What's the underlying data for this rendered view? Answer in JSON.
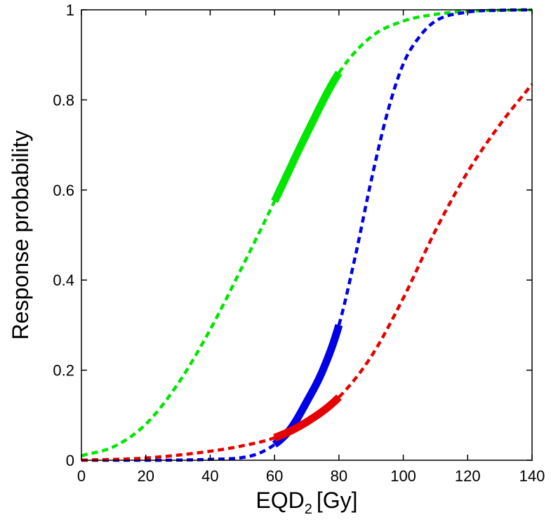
{
  "chart_data": {
    "type": "line",
    "title": "",
    "xlabel": {
      "main": "EQD",
      "subscript": "2",
      "unit": "[Gy]"
    },
    "ylabel": "Response probability",
    "xlim": [
      0,
      140
    ],
    "ylim": [
      0,
      1
    ],
    "xticks": [
      "0",
      "20",
      "40",
      "60",
      "80",
      "100",
      "120",
      "140"
    ],
    "yticks": [
      "0",
      "0.2",
      "0.4",
      "0.6",
      "0.8",
      "1"
    ],
    "grid": false,
    "highlight_range": [
      60,
      80
    ],
    "series": [
      {
        "name": "green",
        "color": "#00e600",
        "x": [
          0,
          10,
          20,
          30,
          40,
          50,
          60,
          70,
          80,
          90,
          100,
          110,
          120,
          130,
          140
        ],
        "y": [
          0.01,
          0.03,
          0.08,
          0.17,
          0.29,
          0.43,
          0.575,
          0.725,
          0.86,
          0.94,
          0.975,
          0.99,
          0.997,
          0.999,
          1.0
        ]
      },
      {
        "name": "blue",
        "color": "#0000e6",
        "x": [
          0,
          20,
          40,
          50,
          55,
          60,
          65,
          70,
          75,
          80,
          85,
          90,
          95,
          100,
          105,
          110,
          120,
          130,
          140
        ],
        "y": [
          0.0,
          0.0,
          0.002,
          0.006,
          0.015,
          0.035,
          0.07,
          0.13,
          0.2,
          0.3,
          0.45,
          0.62,
          0.77,
          0.88,
          0.94,
          0.975,
          0.995,
          0.999,
          1.0
        ]
      },
      {
        "name": "red",
        "color": "#e60000",
        "x": [
          0,
          20,
          40,
          50,
          60,
          70,
          80,
          90,
          100,
          110,
          120,
          130,
          140
        ],
        "y": [
          0.0,
          0.005,
          0.02,
          0.032,
          0.05,
          0.085,
          0.14,
          0.23,
          0.36,
          0.51,
          0.64,
          0.745,
          0.835
        ]
      }
    ]
  }
}
